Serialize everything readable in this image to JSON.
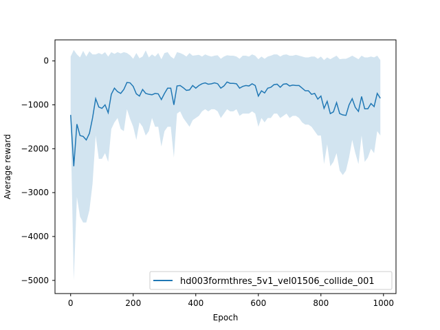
{
  "chart_data": {
    "type": "line",
    "title": "",
    "xlabel": "Epoch",
    "ylabel": "Average reward",
    "xlim": [
      -50,
      1040
    ],
    "ylim": [
      -5300,
      480
    ],
    "xticks": [
      0,
      200,
      400,
      600,
      800,
      1000
    ],
    "yticks": [
      0,
      -1000,
      -2000,
      -3000,
      -4000,
      -5000
    ],
    "grid": false,
    "legend_position": "bottom-right",
    "colors": {
      "line": "#1f77b4",
      "band": "#1f77b4",
      "band_opacity": 0.2
    },
    "series": [
      {
        "name": "hd003formthres_5v1_vel01506_collide_001",
        "x": [
          0,
          10,
          20,
          30,
          40,
          50,
          60,
          70,
          80,
          90,
          100,
          110,
          120,
          130,
          140,
          150,
          160,
          170,
          180,
          190,
          200,
          210,
          220,
          230,
          240,
          250,
          260,
          270,
          280,
          290,
          300,
          310,
          320,
          330,
          340,
          350,
          360,
          370,
          380,
          390,
          400,
          410,
          420,
          430,
          440,
          450,
          460,
          470,
          480,
          490,
          500,
          510,
          520,
          530,
          540,
          550,
          560,
          570,
          580,
          590,
          600,
          610,
          620,
          630,
          640,
          650,
          660,
          670,
          680,
          690,
          700,
          710,
          720,
          730,
          740,
          750,
          760,
          770,
          780,
          790,
          800,
          810,
          820,
          830,
          840,
          850,
          860,
          870,
          880,
          890,
          900,
          910,
          920,
          930,
          940,
          950,
          960,
          970,
          980,
          990
        ],
        "y": [
          -1230,
          -2400,
          -1440,
          -1700,
          -1720,
          -1800,
          -1650,
          -1300,
          -860,
          -1050,
          -1080,
          -1000,
          -1180,
          -760,
          -620,
          -700,
          -740,
          -650,
          -490,
          -500,
          -580,
          -750,
          -800,
          -650,
          -740,
          -760,
          -770,
          -740,
          -750,
          -880,
          -740,
          -620,
          -620,
          -1000,
          -570,
          -560,
          -610,
          -670,
          -660,
          -560,
          -620,
          -560,
          -520,
          -500,
          -530,
          -520,
          -500,
          -520,
          -620,
          -570,
          -480,
          -510,
          -510,
          -520,
          -620,
          -580,
          -560,
          -570,
          -520,
          -560,
          -800,
          -680,
          -730,
          -620,
          -600,
          -540,
          -530,
          -600,
          -530,
          -520,
          -570,
          -550,
          -560,
          -560,
          -620,
          -680,
          -680,
          -760,
          -740,
          -870,
          -800,
          -1080,
          -920,
          -1200,
          -1160,
          -950,
          -1200,
          -1230,
          -1240,
          -1000,
          -860,
          -1060,
          -1150,
          -810,
          -1090,
          -1090,
          -970,
          -1040,
          -740,
          -850
        ],
        "lower": [
          -1500,
          -5000,
          -3100,
          -3550,
          -3680,
          -3680,
          -3400,
          -2800,
          -1700,
          -2230,
          -2230,
          -2100,
          -2300,
          -1550,
          -1400,
          -1300,
          -1550,
          -1600,
          -1100,
          -1320,
          -1500,
          -1800,
          -1400,
          -1500,
          -1700,
          -1600,
          -1300,
          -1500,
          -1500,
          -1950,
          -1600,
          -1500,
          -1500,
          -2200,
          -1200,
          -1150,
          -1300,
          -1400,
          -1500,
          -1350,
          -1300,
          -1250,
          -1150,
          -1100,
          -1150,
          -1100,
          -1100,
          -1150,
          -1300,
          -1200,
          -1100,
          -1150,
          -1150,
          -1100,
          -1250,
          -1200,
          -1200,
          -1200,
          -1150,
          -1200,
          -1500,
          -1300,
          -1400,
          -1300,
          -1300,
          -1200,
          -1200,
          -1300,
          -1250,
          -1200,
          -1300,
          -1250,
          -1250,
          -1300,
          -1400,
          -1450,
          -1450,
          -1500,
          -1600,
          -1700,
          -1700,
          -2350,
          -1900,
          -2400,
          -2300,
          -2100,
          -2500,
          -2600,
          -2500,
          -2200,
          -1800,
          -2100,
          -2350,
          -1700,
          -2300,
          -2200,
          -2000,
          -2100,
          -1600,
          -1700
        ],
        "upper": [
          100,
          250,
          150,
          80,
          230,
          100,
          220,
          150,
          150,
          180,
          150,
          200,
          100,
          200,
          160,
          200,
          170,
          200,
          180,
          130,
          50,
          180,
          60,
          100,
          240,
          80,
          150,
          100,
          180,
          40,
          180,
          200,
          100,
          50,
          200,
          180,
          150,
          100,
          180,
          120,
          130,
          140,
          100,
          150,
          120,
          100,
          120,
          130,
          50,
          100,
          130,
          120,
          120,
          100,
          50,
          120,
          120,
          100,
          150,
          120,
          40,
          100,
          50,
          100,
          120,
          150,
          150,
          100,
          140,
          150,
          120,
          120,
          140,
          120,
          100,
          80,
          80,
          100,
          100,
          50,
          100,
          20,
          80,
          40,
          80,
          120,
          40,
          50,
          50,
          80,
          120,
          80,
          40,
          120,
          80,
          80,
          100,
          80,
          120,
          20
        ]
      }
    ]
  }
}
